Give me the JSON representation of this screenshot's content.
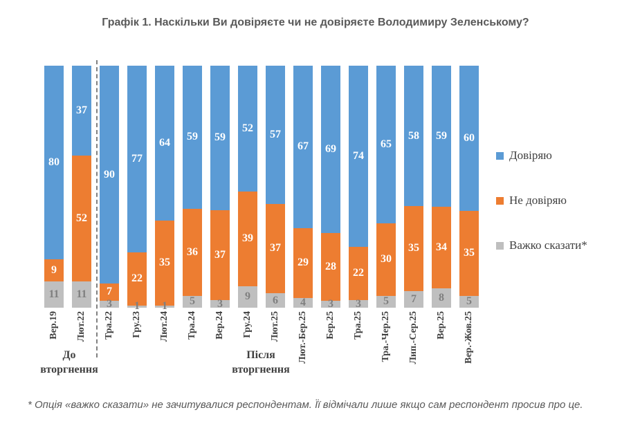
{
  "title": "Графік 1. Наскільки Ви довіряєте чи не довіряєте Володимиру Зеленському?",
  "groups": {
    "before": "До\nвторгнення",
    "after": "Після\nвторгнення"
  },
  "footnote": "* Опція «важко сказати» не зачитувалися респондентам. Її відмічали лише якщо сам респондент просив про це.",
  "colors": {
    "trust": "#5B9BD5",
    "distrust": "#ED7D31",
    "hard_to_say": "#BFBFBF",
    "hard_to_say_label": "#7F7F7F",
    "axis_text": "#404040",
    "title_text": "#595959",
    "divider": "#808080"
  },
  "chart_data": {
    "type": "bar",
    "stacked": true,
    "units": "percent",
    "title": "Графік 1. Наскільки Ви довіряєте чи не довіряєте Володимиру Зеленському?",
    "categories": [
      "Вер.19",
      "Лют.22",
      "Тра.22",
      "Гру.23",
      "Лют.24",
      "Тра.24",
      "Вер.24",
      "Гру.24",
      "Лют.25",
      "Лют.-Бер.25",
      "Бер.25",
      "Тра.25",
      "Тра.-Чер.25",
      "Лип.-Сер.25",
      "Вер.25",
      "Вер.-Жов.25"
    ],
    "series": [
      {
        "name": "Довіряю",
        "color": "#5B9BD5",
        "label_color": "#FFFFFF",
        "values": [
          80,
          37,
          90,
          77,
          64,
          59,
          59,
          52,
          57,
          67,
          69,
          74,
          65,
          58,
          59,
          60
        ]
      },
      {
        "name": "Не довіряю",
        "color": "#ED7D31",
        "label_color": "#FFFFFF",
        "values": [
          9,
          52,
          7,
          22,
          35,
          36,
          37,
          39,
          37,
          29,
          28,
          22,
          30,
          35,
          34,
          35
        ]
      },
      {
        "name": "Важко сказати*",
        "color": "#BFBFBF",
        "label_color": "#7F7F7F",
        "values": [
          11,
          11,
          3,
          1,
          1,
          5,
          3,
          9,
          6,
          4,
          3,
          3,
          5,
          7,
          8,
          5
        ]
      }
    ],
    "ylim": [
      0,
      100
    ],
    "grid": false,
    "legend_position": "right",
    "divider_after_category": "Лют.22",
    "group_annotations": [
      {
        "label": "До вторгнення",
        "categories": [
          "Вер.19",
          "Лют.22"
        ]
      },
      {
        "label": "Після вторгнення",
        "categories": [
          "Тра.22",
          "Вер.-Жов.25"
        ]
      }
    ]
  }
}
